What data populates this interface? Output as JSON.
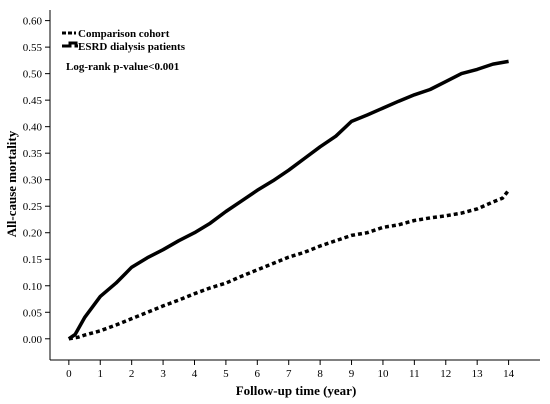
{
  "chart_data": {
    "type": "line",
    "xlabel": "Follow-up time (year)",
    "ylabel": "All-cause mortality",
    "xlim": [
      -0.6,
      15.0
    ],
    "ylim": [
      -0.04,
      0.62
    ],
    "xticks": [
      0,
      1,
      2,
      3,
      4,
      5,
      6,
      7,
      8,
      9,
      10,
      11,
      12,
      13,
      14
    ],
    "yticks": [
      0.0,
      0.05,
      0.1,
      0.15,
      0.2,
      0.25,
      0.3,
      0.35,
      0.4,
      0.45,
      0.5,
      0.55,
      0.6
    ],
    "ytick_labels": [
      "0.00",
      "0.05",
      "0.10",
      "0.15",
      "0.20",
      "0.25",
      "0.30",
      "0.35",
      "0.40",
      "0.45",
      "0.50",
      "0.55",
      "0.60"
    ],
    "annotation": "Log-rank p-value<0.001",
    "legend_position": "top-left",
    "grid": false,
    "series": [
      {
        "name": "Comparison cohort",
        "style": "dashed",
        "color": "#000000",
        "x": [
          0,
          0.3,
          0.5,
          1,
          1.5,
          2,
          2.5,
          3,
          3.5,
          4,
          4.5,
          5,
          5.5,
          6,
          6.5,
          7,
          7.5,
          8,
          8.5,
          9,
          9.5,
          10,
          10.5,
          11,
          11.5,
          12,
          12.5,
          13,
          13.5,
          13.8,
          14
        ],
        "values": [
          0,
          0.003,
          0.007,
          0.015,
          0.026,
          0.038,
          0.05,
          0.062,
          0.073,
          0.085,
          0.096,
          0.105,
          0.118,
          0.13,
          0.142,
          0.154,
          0.163,
          0.175,
          0.185,
          0.195,
          0.2,
          0.21,
          0.215,
          0.223,
          0.228,
          0.232,
          0.237,
          0.245,
          0.258,
          0.265,
          0.28
        ]
      },
      {
        "name": "ESRD dialysis patients",
        "style": "solid",
        "color": "#000000",
        "x": [
          0,
          0.2,
          0.5,
          1,
          1.5,
          2,
          2.5,
          3,
          3.5,
          4,
          4.5,
          5,
          5.5,
          6,
          6.5,
          7,
          7.5,
          8,
          8.5,
          9,
          9.5,
          10,
          10.5,
          11,
          11.5,
          12,
          12.5,
          13,
          13.5,
          14
        ],
        "values": [
          0,
          0.008,
          0.04,
          0.08,
          0.105,
          0.135,
          0.153,
          0.168,
          0.185,
          0.2,
          0.218,
          0.24,
          0.26,
          0.28,
          0.298,
          0.318,
          0.34,
          0.362,
          0.382,
          0.41,
          0.422,
          0.435,
          0.448,
          0.46,
          0.47,
          0.485,
          0.5,
          0.508,
          0.518,
          0.523
        ]
      }
    ]
  }
}
